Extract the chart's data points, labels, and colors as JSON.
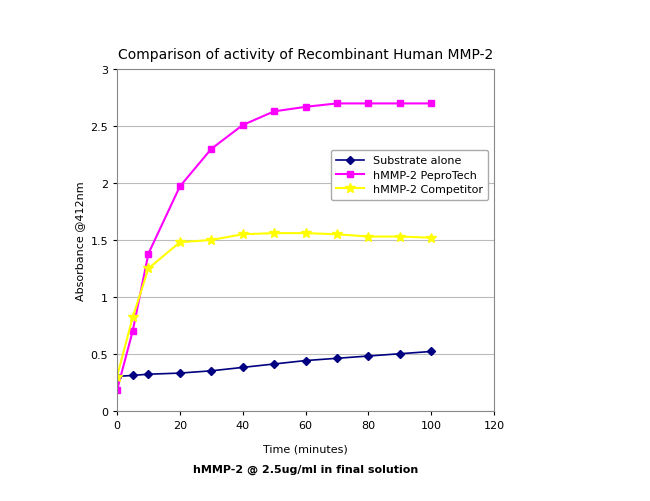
{
  "title": "Comparison of activity of Recombinant Human MMP-2",
  "xlabel_line1": "Time (minutes)",
  "xlabel_line2": "hMMP-2 @ 2.5ug/ml in final solution",
  "ylabel": "Absorbance @412nm",
  "xlim": [
    0,
    120
  ],
  "ylim": [
    0,
    3
  ],
  "xticks": [
    0,
    20,
    40,
    60,
    80,
    100,
    120
  ],
  "yticks": [
    0,
    0.5,
    1.0,
    1.5,
    2.0,
    2.5,
    3.0
  ],
  "substrate_alone": {
    "x": [
      0,
      5,
      10,
      20,
      30,
      40,
      50,
      60,
      70,
      80,
      90,
      100
    ],
    "y": [
      0.3,
      0.31,
      0.32,
      0.33,
      0.35,
      0.38,
      0.41,
      0.44,
      0.46,
      0.48,
      0.5,
      0.52
    ],
    "color": "#000080",
    "marker": "D",
    "label": "Substrate alone",
    "linewidth": 1.2,
    "markersize": 4
  },
  "pepro": {
    "x": [
      0,
      5,
      10,
      20,
      30,
      40,
      50,
      60,
      70,
      80,
      90,
      100
    ],
    "y": [
      0.18,
      0.7,
      1.38,
      1.97,
      2.3,
      2.51,
      2.63,
      2.67,
      2.7,
      2.7,
      2.7,
      2.7
    ],
    "color": "#FF00FF",
    "marker": "s",
    "label": "hMMP-2 PeproTech",
    "linewidth": 1.5,
    "markersize": 4
  },
  "competitor": {
    "x": [
      0,
      5,
      10,
      20,
      30,
      40,
      50,
      60,
      70,
      80,
      90,
      100
    ],
    "y": [
      0.3,
      0.82,
      1.25,
      1.48,
      1.5,
      1.55,
      1.56,
      1.56,
      1.55,
      1.53,
      1.53,
      1.52
    ],
    "color": "#FFFF00",
    "marker": "*",
    "label": "hMMP-2 Competitor",
    "linewidth": 1.5,
    "markersize": 7
  },
  "grid_color": "#bbbbbb",
  "background_color": "#ffffff",
  "title_fontsize": 10,
  "label_fontsize": 8,
  "label2_fontsize": 8,
  "tick_fontsize": 8,
  "legend_fontsize": 8
}
